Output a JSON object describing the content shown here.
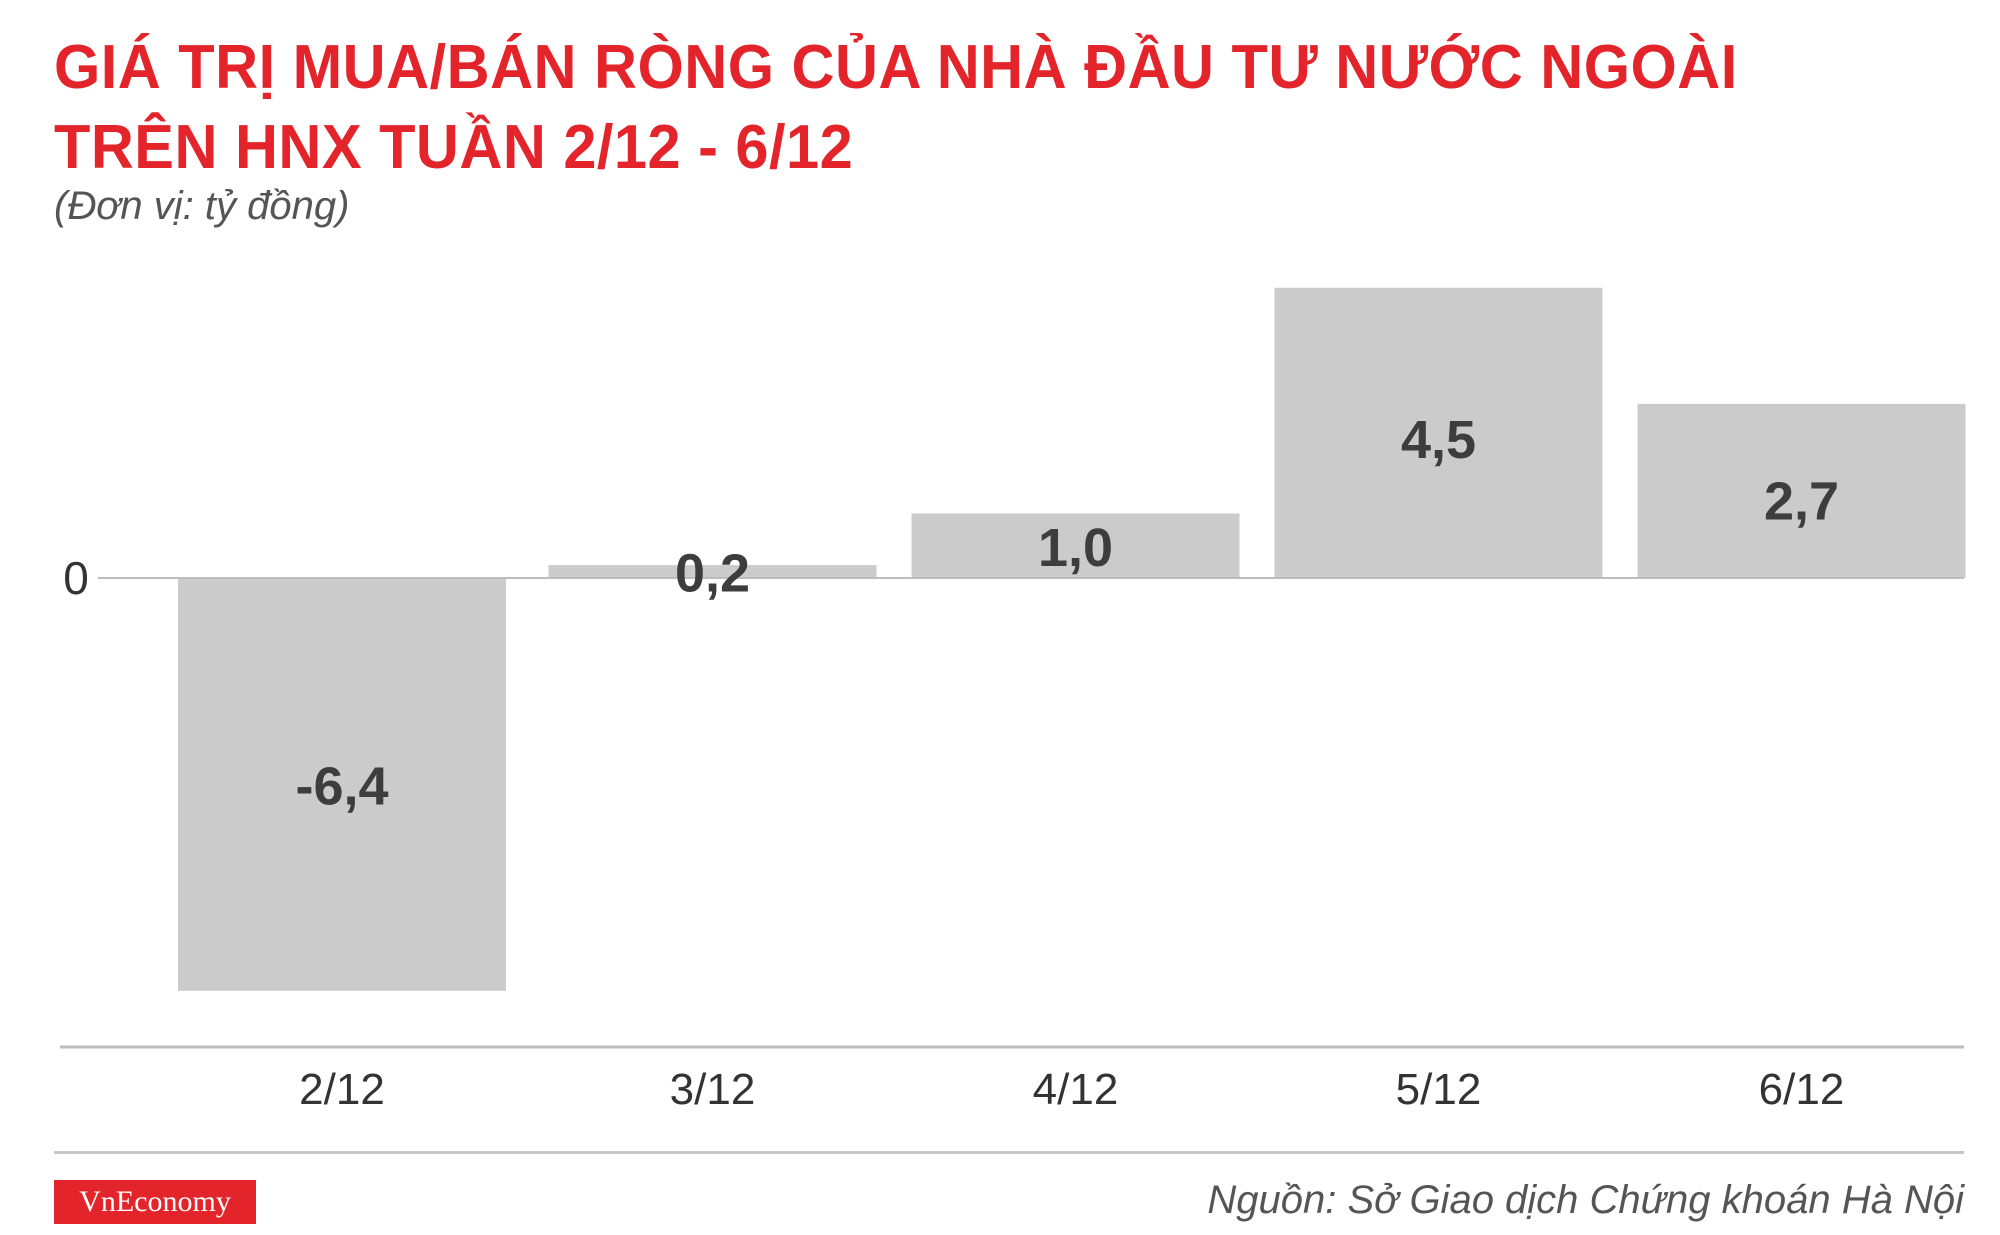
{
  "header": {
    "title_line1": "GIÁ TRỊ MUA/BÁN RÒNG CỦA NHÀ ĐẦU TƯ NƯỚC NGOÀI",
    "title_line2": "TRÊN HNX TUẦN 2/12 - 6/12",
    "unit": "(Đơn vị: tỷ đồng)"
  },
  "footer": {
    "logo": "VnEconomy",
    "source": "Nguồn: Sở Giao dịch Chứng khoán Hà Nội"
  },
  "colors": {
    "title": "#e3242b",
    "bar": "#cccbcb",
    "value_label": "#3d3d3d",
    "logo_bg": "#e3242b"
  },
  "chart_data": {
    "type": "bar",
    "categories": [
      "2/12",
      "3/12",
      "4/12",
      "5/12",
      "6/12"
    ],
    "values": [
      -6.4,
      0.2,
      1.0,
      4.5,
      2.7
    ],
    "value_labels": [
      "-6,4",
      "0,2",
      "1,0",
      "4,5",
      "2,7"
    ],
    "zero_label": "0",
    "title": "GIÁ TRỊ MUA/BÁN RÒNG CỦA NHÀ ĐẦU TƯ NƯỚC NGOÀI TRÊN HNX TUẦN 2/12 - 6/12",
    "ylabel": "(Đơn vị: tỷ đồng)",
    "ylim": [
      -6.4,
      4.5
    ],
    "grid": false,
    "legend": "none"
  }
}
